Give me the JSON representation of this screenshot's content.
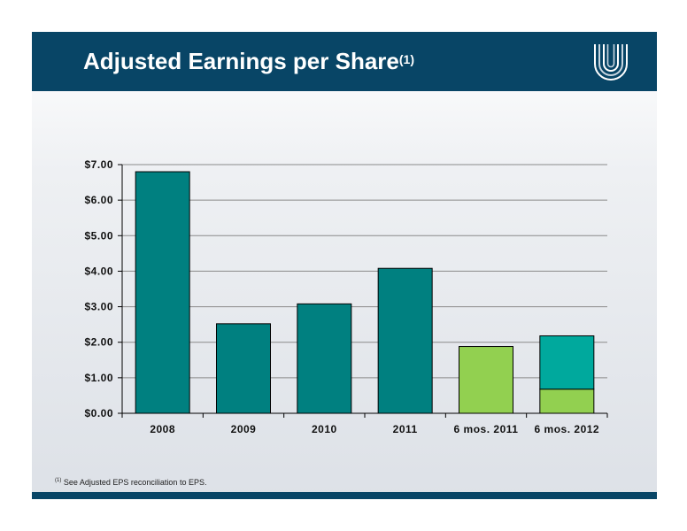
{
  "header": {
    "title": "Adjusted Earnings per Share",
    "title_sup": "(1)",
    "logo_icon": "unitedhealth-u-logo-icon"
  },
  "footnote": {
    "marker": "(1)",
    "text": "See Adjusted EPS reconciliation to EPS."
  },
  "colors": {
    "header": "#084566",
    "bar_teal": "#008080",
    "bar_green": "#92d050",
    "bar_aqua": "#00a99d"
  },
  "chart_data": {
    "type": "bar",
    "stacked": true,
    "categories": [
      "2008",
      "2009",
      "2010",
      "2011",
      "6 mos. 2011",
      "6 mos. 2012"
    ],
    "series": [
      {
        "values": [
          6.8,
          2.52,
          3.08,
          4.08,
          0,
          0
        ],
        "color": "#008080"
      },
      {
        "values": [
          0,
          0,
          0,
          0,
          1.88,
          0.68
        ],
        "color": "#92d050"
      },
      {
        "values": [
          0,
          0,
          0,
          0,
          0,
          1.5
        ],
        "color": "#00a99d"
      }
    ],
    "y_ticks": [
      "$0.00",
      "$1.00",
      "$2.00",
      "$3.00",
      "$4.00",
      "$5.00",
      "$6.00",
      "$7.00"
    ],
    "ylim": [
      0,
      7
    ],
    "grid": true,
    "legend": "none"
  }
}
